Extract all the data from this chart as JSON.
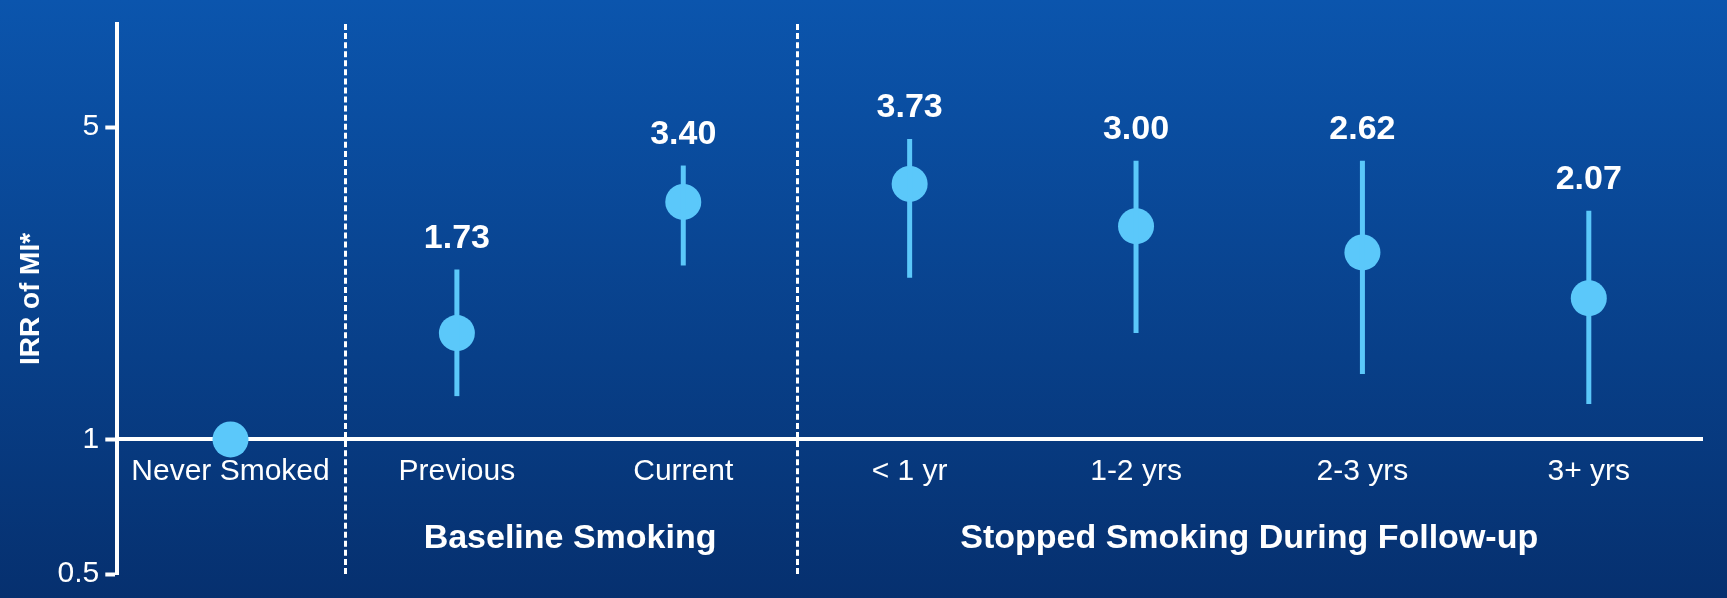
{
  "chart_data": {
    "type": "scatter",
    "ylabel": "IRR of MI*",
    "categories": [
      "Never Smoked",
      "Previous",
      "Current",
      "< 1 yr",
      "1-2 yrs",
      "2-3 yrs",
      "3+ yrs"
    ],
    "values": [
      1,
      1.73,
      3.4,
      3.73,
      3,
      2.62,
      2.07
    ],
    "errors": [
      null,
      [
        1.25,
        2.4
      ],
      [
        2.45,
        4.1
      ],
      [
        2.3,
        4.7
      ],
      [
        1.73,
        4.2
      ],
      [
        1.4,
        4.2
      ],
      [
        1.2,
        3.25
      ]
    ],
    "value_labels": [
      null,
      "1.73",
      "3.40",
      "3.73",
      "3.00",
      "2.62",
      "2.07"
    ],
    "color": "#5bc8fa",
    "marker": "circle",
    "log": true,
    "ylim": [
      0.5,
      8.5
    ],
    "yticks": [
      0.5,
      1,
      5
    ],
    "grid": false,
    "legend": false,
    "annotations": [
      "Baseline Smoking",
      "Stopped Smoking During Follow-up"
    ]
  }
}
